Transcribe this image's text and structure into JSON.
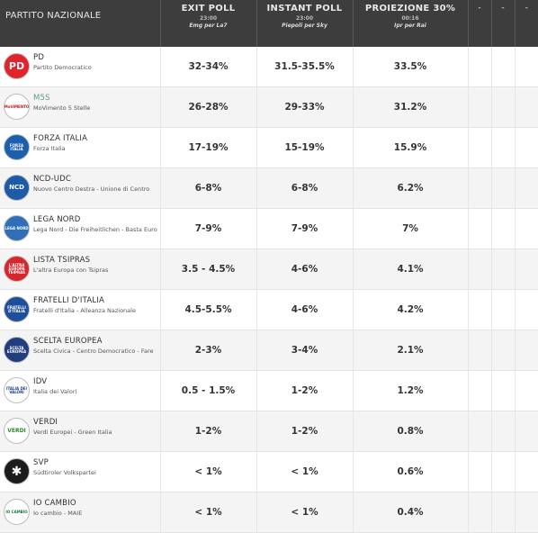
{
  "header": {
    "party_col": "PARTITO NAZIONALE",
    "exit_poll": {
      "title": "EXIT POLL",
      "time": "23:00",
      "source": "Emg per La7"
    },
    "instant_poll": {
      "title": "INSTANT POLL",
      "time": "23:00",
      "source": "Piepoli per Sky"
    },
    "projection": {
      "title": "PROIEZIONE 30%",
      "time": "00:16",
      "source": "Ipr per Rai"
    },
    "extra": [
      "-",
      "-",
      "-"
    ]
  },
  "parties": [
    {
      "short": "PD",
      "full": "Partito Democratico",
      "exit": "32-34%",
      "instant": "31.5-35.5%",
      "proj": "33.5%"
    },
    {
      "short": "M5S",
      "full": "MoVimento 5 Stelle",
      "exit": "26-28%",
      "instant": "29-33%",
      "proj": "31.2%"
    },
    {
      "short": "FORZA ITALIA",
      "full": "Forza Italia",
      "exit": "17-19%",
      "instant": "15-19%",
      "proj": "15.9%"
    },
    {
      "short": "NCD-UDC",
      "full": "Nuovo Centro Destra - Unione di Centro",
      "exit": "6-8%",
      "instant": "6-8%",
      "proj": "6.2%"
    },
    {
      "short": "LEGA NORD",
      "full": "Lega Nord - Die Freiheitlichen - Basta Euro",
      "exit": "7-9%",
      "instant": "7-9%",
      "proj": "7%"
    },
    {
      "short": "LISTA TSIPRAS",
      "full": "L'altra Europa con Tsipras",
      "exit": "3.5 - 4.5%",
      "instant": "4-6%",
      "proj": "4.1%"
    },
    {
      "short": "FRATELLI D'ITALIA",
      "full": "Fratelli d'Italia - Alleanza Nazionale",
      "exit": "4.5-5.5%",
      "instant": "4-6%",
      "proj": "4.2%"
    },
    {
      "short": "SCELTA EUROPEA",
      "full": "Scelta Civica - Centro Democratico - Fare",
      "exit": "2-3%",
      "instant": "3-4%",
      "proj": "2.1%"
    },
    {
      "short": "IDV",
      "full": "Italia dei Valori",
      "exit": "0.5 - 1.5%",
      "instant": "1-2%",
      "proj": "1.2%"
    },
    {
      "short": "VERDI",
      "full": "Verdi Europei - Green Italia",
      "exit": "1-2%",
      "instant": "1-2%",
      "proj": "0.8%"
    },
    {
      "short": "SVP",
      "full": "Südtiroler Volkspartei",
      "exit": "< 1%",
      "instant": "< 1%",
      "proj": "0.6%"
    },
    {
      "short": "IO CAMBIO",
      "full": "Io cambio - MAIE",
      "exit": "< 1%",
      "instant": "< 1%",
      "proj": "0.4%"
    }
  ],
  "logos": {
    "pd": {
      "text": "PD",
      "bg": "#e3232b",
      "color": "#ffffff"
    },
    "m5s": {
      "text": "MoVIMENTO",
      "bg": "#ffffff",
      "color": "#c9151e"
    },
    "fi": {
      "text": "FORZA ITALIA",
      "bg": "#1b5fae",
      "color": "#ffffff"
    },
    "ncd": {
      "text": "NCD",
      "bg": "#1d5aa8",
      "color": "#ffffff"
    },
    "lega": {
      "text": "LEGA NORD",
      "bg": "#2f6fb7",
      "color": "#ffffff"
    },
    "tsipras": {
      "text": "L'ALTRA EUROPA TSIPRAS",
      "bg": "#d7262c",
      "color": "#ffffff"
    },
    "fdi": {
      "text": "FRATELLI D'ITALIA",
      "bg": "#1f4f9c",
      "color": "#ffffff"
    },
    "sc": {
      "text": "SCELTA EUROPEA",
      "bg": "#203d7d",
      "color": "#ffffff"
    },
    "idv": {
      "text": "ITALIA DEI VALORI",
      "bg": "#ffffff",
      "color": "#1c3f8a"
    },
    "verdi": {
      "text": "VERDI",
      "bg": "#ffffff",
      "color": "#2b8a2b"
    },
    "svp": {
      "text": "",
      "bg": "#1c1c1c",
      "color": "#ffffff"
    },
    "iocambio": {
      "text": "IO CAMBIO",
      "bg": "#ffffff",
      "color": "#1b7a3a"
    }
  },
  "colors": {
    "header_bg": "#3d3d3d",
    "row_alt": "#f4f4f4",
    "text": "#333333",
    "m5s_name": "#5b9b8b"
  }
}
